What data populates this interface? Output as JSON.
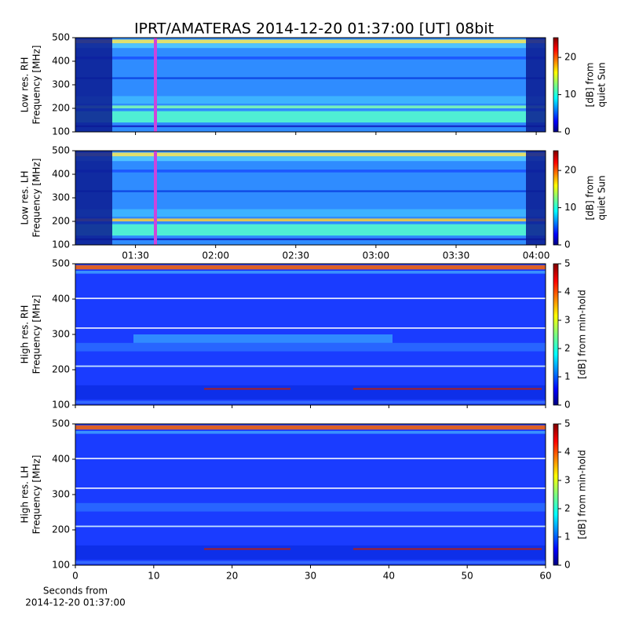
{
  "title": "IPRT/AMATERAS 2014-12-20 01:37:00 [UT]   08bit",
  "chart_data": [
    {
      "type": "heatmap",
      "ylabel": [
        "Low res. RH",
        "Frequency [MHz]"
      ],
      "ylim": [
        100,
        500
      ],
      "yticks": [
        100,
        200,
        300,
        400,
        500
      ],
      "xlim": [
        67.5,
        243.5
      ],
      "xticks": [
        90,
        120,
        150,
        180,
        210,
        240
      ],
      "xtick_labels": false,
      "colorbar": {
        "label": [
          "[dB] from",
          "quiet Sun"
        ],
        "lim": [
          0,
          25.3
        ],
        "ticks": [
          0,
          10,
          20
        ]
      }
    },
    {
      "type": "heatmap",
      "ylabel": [
        "Low res. LH",
        "Frequency [MHz]"
      ],
      "ylim": [
        100,
        500
      ],
      "yticks": [
        100,
        200,
        300,
        400,
        500
      ],
      "xlim": [
        67.5,
        243.5
      ],
      "xticks": [
        {
          "value": 90,
          "label": "01:30"
        },
        {
          "value": 120,
          "label": "02:00"
        },
        {
          "value": 150,
          "label": "02:30"
        },
        {
          "value": 180,
          "label": "03:00"
        },
        {
          "value": 210,
          "label": "03:30"
        },
        {
          "value": 240,
          "label": "04:00"
        }
      ],
      "xtick_labels": true,
      "colorbar": {
        "label": [
          "[dB] from",
          "quiet Sun"
        ],
        "lim": [
          0,
          25.3
        ],
        "ticks": [
          0,
          10,
          20
        ]
      }
    },
    {
      "type": "heatmap",
      "ylabel": [
        "High res. RH",
        "Frequency [MHz]"
      ],
      "ylim": [
        100,
        500
      ],
      "yticks": [
        100,
        200,
        300,
        400,
        500
      ],
      "xlim": [
        0,
        60
      ],
      "xticks": [
        0,
        10,
        20,
        30,
        40,
        50,
        60
      ],
      "xtick_labels": false,
      "colorbar": {
        "label": [
          "[dB] from min-hold"
        ],
        "lim": [
          0,
          5
        ],
        "ticks": [
          0,
          1,
          2,
          3,
          4,
          5
        ]
      }
    },
    {
      "type": "heatmap",
      "ylabel": [
        "High res. LH",
        "Frequency [MHz]"
      ],
      "ylim": [
        100,
        500
      ],
      "yticks": [
        100,
        200,
        300,
        400,
        500
      ],
      "xlim": [
        0,
        60
      ],
      "xticks": [
        0,
        10,
        20,
        30,
        40,
        50,
        60
      ],
      "xtick_labels": true,
      "xlabel": [
        "Seconds from",
        "2014-12-20 01:37:00"
      ],
      "colorbar": {
        "label": [
          "[dB] from min-hold"
        ],
        "lim": [
          0,
          5
        ],
        "ticks": [
          0,
          1,
          2,
          3,
          4,
          5
        ]
      }
    }
  ]
}
